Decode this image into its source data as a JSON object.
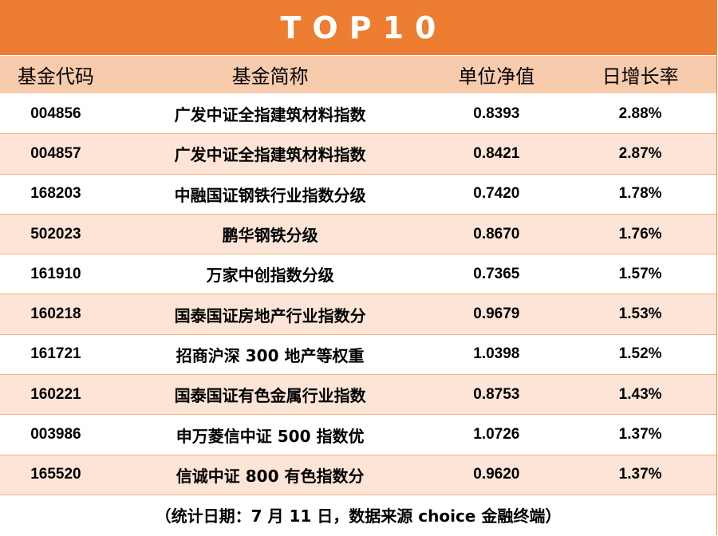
{
  "title": "TOP10",
  "columns": [
    "基金代码",
    "基金简称",
    "单位净值",
    "日增长率"
  ],
  "rows": [
    {
      "code": "004856",
      "name": "广发中证全指建筑材料指数",
      "nav": "0.8393",
      "rate": "2.88%"
    },
    {
      "code": "004857",
      "name": "广发中证全指建筑材料指数",
      "nav": "0.8421",
      "rate": "2.87%"
    },
    {
      "code": "168203",
      "name": "中融国证钢铁行业指数分级",
      "nav": "0.7420",
      "rate": "1.78%"
    },
    {
      "code": "502023",
      "name": "鹏华钢铁分级",
      "nav": "0.8670",
      "rate": "1.76%"
    },
    {
      "code": "161910",
      "name": "万家中创指数分级",
      "nav": "0.7365",
      "rate": "1.57%"
    },
    {
      "code": "160218",
      "name": "国泰国证房地产行业指数分",
      "nav": "0.9679",
      "rate": "1.53%"
    },
    {
      "code": "161721",
      "name": "招商沪深 300 地产等权重",
      "nav": "1.0398",
      "rate": "1.52%"
    },
    {
      "code": "160221",
      "name": "国泰国证有色金属行业指数",
      "nav": "0.8753",
      "rate": "1.43%"
    },
    {
      "code": "003986",
      "name": "申万菱信中证 500 指数优",
      "nav": "1.0726",
      "rate": "1.37%"
    },
    {
      "code": "165520",
      "name": "信诚中证 800 有色指数分",
      "nav": "0.9620",
      "rate": "1.37%"
    }
  ],
  "footer": "（统计日期：7 月 11 日，数据来源 choice 金融终端）",
  "colors": {
    "title_bg": "#ed7d31",
    "header_bg": "#f8cbad",
    "stripe_bg": "#fce4d6"
  }
}
